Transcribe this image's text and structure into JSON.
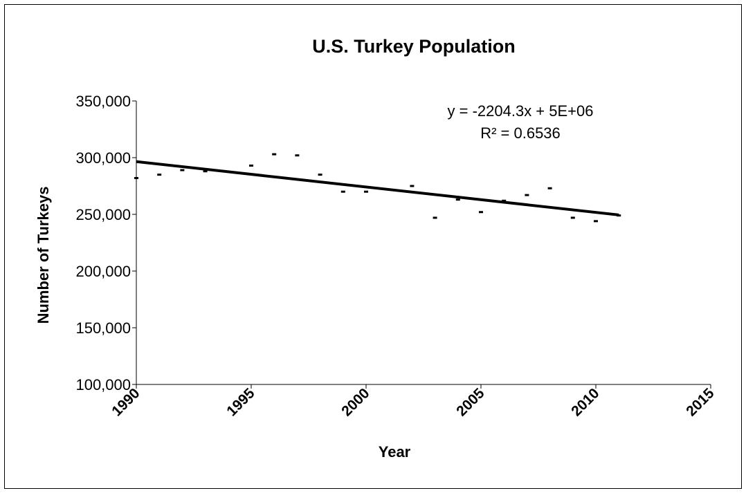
{
  "chart_data": {
    "type": "scatter",
    "title": "U.S. Turkey Population",
    "xlabel": "Year",
    "ylabel": "Number of Turkeys",
    "xlim": [
      1990,
      2015
    ],
    "ylim": [
      100000,
      350000
    ],
    "x_ticks": [
      "1990",
      "1995",
      "2000",
      "2005",
      "2010",
      "2015"
    ],
    "y_ticks": [
      "100,000",
      "150,000",
      "200,000",
      "250,000",
      "300,000",
      "350,000"
    ],
    "grid": false,
    "series": [
      {
        "x": [
          1990,
          1991,
          1992,
          1993,
          1995,
          1996,
          1997,
          1998,
          1999,
          2000,
          2002,
          2003,
          2004,
          2005,
          2006,
          2007,
          2008,
          2009,
          2010,
          2011
        ],
        "y": [
          282000,
          285000,
          289000,
          288000,
          293000,
          303000,
          302000,
          285000,
          270000,
          270000,
          275000,
          247000,
          263000,
          252000,
          262000,
          267000,
          273000,
          247000,
          244000,
          249000
        ]
      }
    ],
    "trendline": {
      "type": "linear",
      "equation": "y = -2204.3x + 5E+06",
      "r_squared": "R² = 0.6536",
      "x_range": [
        1990,
        2011
      ],
      "y_at_start": 296500,
      "y_at_end": 249500
    },
    "colors": {
      "marker": "#000000",
      "line": "#000000"
    }
  }
}
